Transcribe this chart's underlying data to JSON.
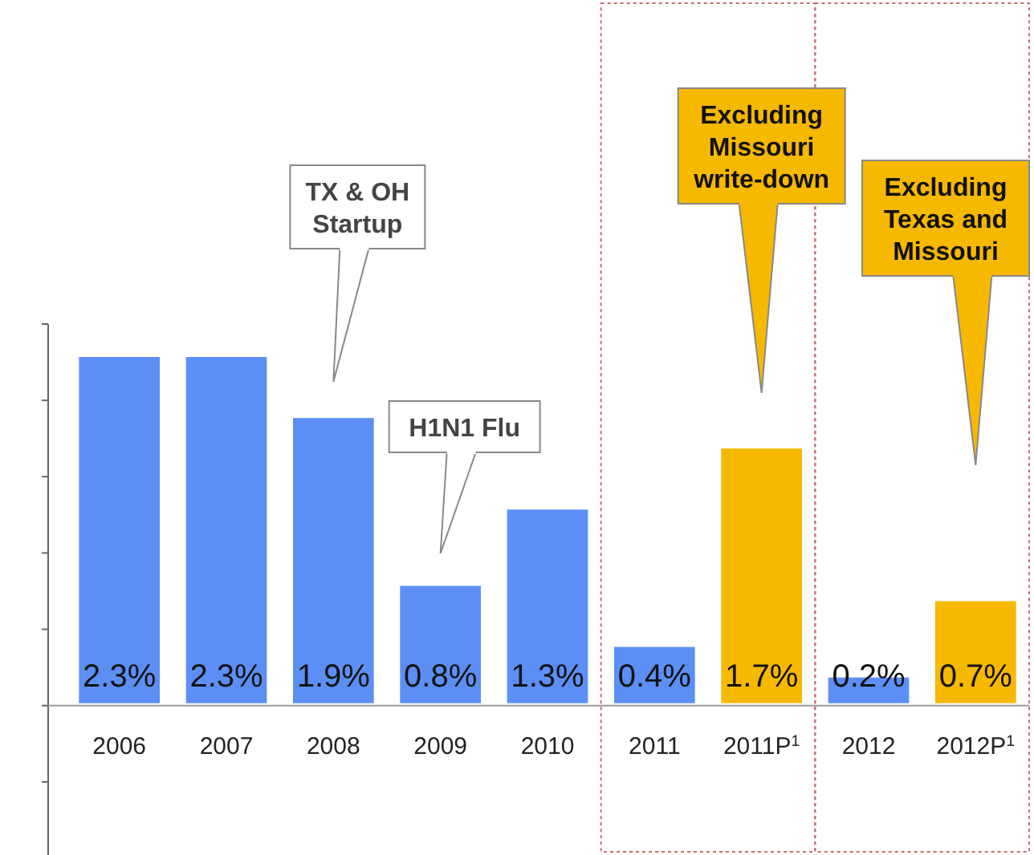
{
  "chart_data": {
    "type": "bar",
    "categories": [
      "2006",
      "2007",
      "2008",
      "2009",
      "2010",
      "2011",
      "2011P$^{1}$",
      "2012",
      "2012P$^{1}$"
    ],
    "values": [
      2.3,
      2.3,
      1.9,
      0.8,
      1.3,
      0.4,
      1.7,
      0.2,
      0.7
    ],
    "colors": [
      "#5b8ff5",
      "#5b8ff5",
      "#5b8ff5",
      "#5b8ff5",
      "#5b8ff5",
      "#5b8ff5",
      "#f7b800",
      "#5b8ff5",
      "#f7b800"
    ],
    "value_labels": [
      "2.3%",
      "2.3%",
      "1.9%",
      "0.8%",
      "1.3%",
      "0.4%",
      "1.7%",
      "0.2%",
      "0.7%"
    ],
    "ylim": [
      -1,
      2.5
    ],
    "yticks": [
      {
        "value": -1,
        "label": null
      },
      {
        "value": -0.5,
        "label": null
      },
      {
        "value": 0,
        "label": null
      },
      {
        "value": 0.5,
        "label": null
      },
      {
        "value": 1,
        "label": null
      },
      {
        "value": 1.5,
        "label": null
      },
      {
        "value": 2,
        "label": null
      },
      {
        "value": 2.5,
        "label": null
      }
    ],
    "tick_labels": "x",
    "annotations": [
      "TX & OH Startup",
      "H1N1 Flu",
      "Excluding Missouri write-down",
      "Excluding Texas and Missouri"
    ]
  }
}
